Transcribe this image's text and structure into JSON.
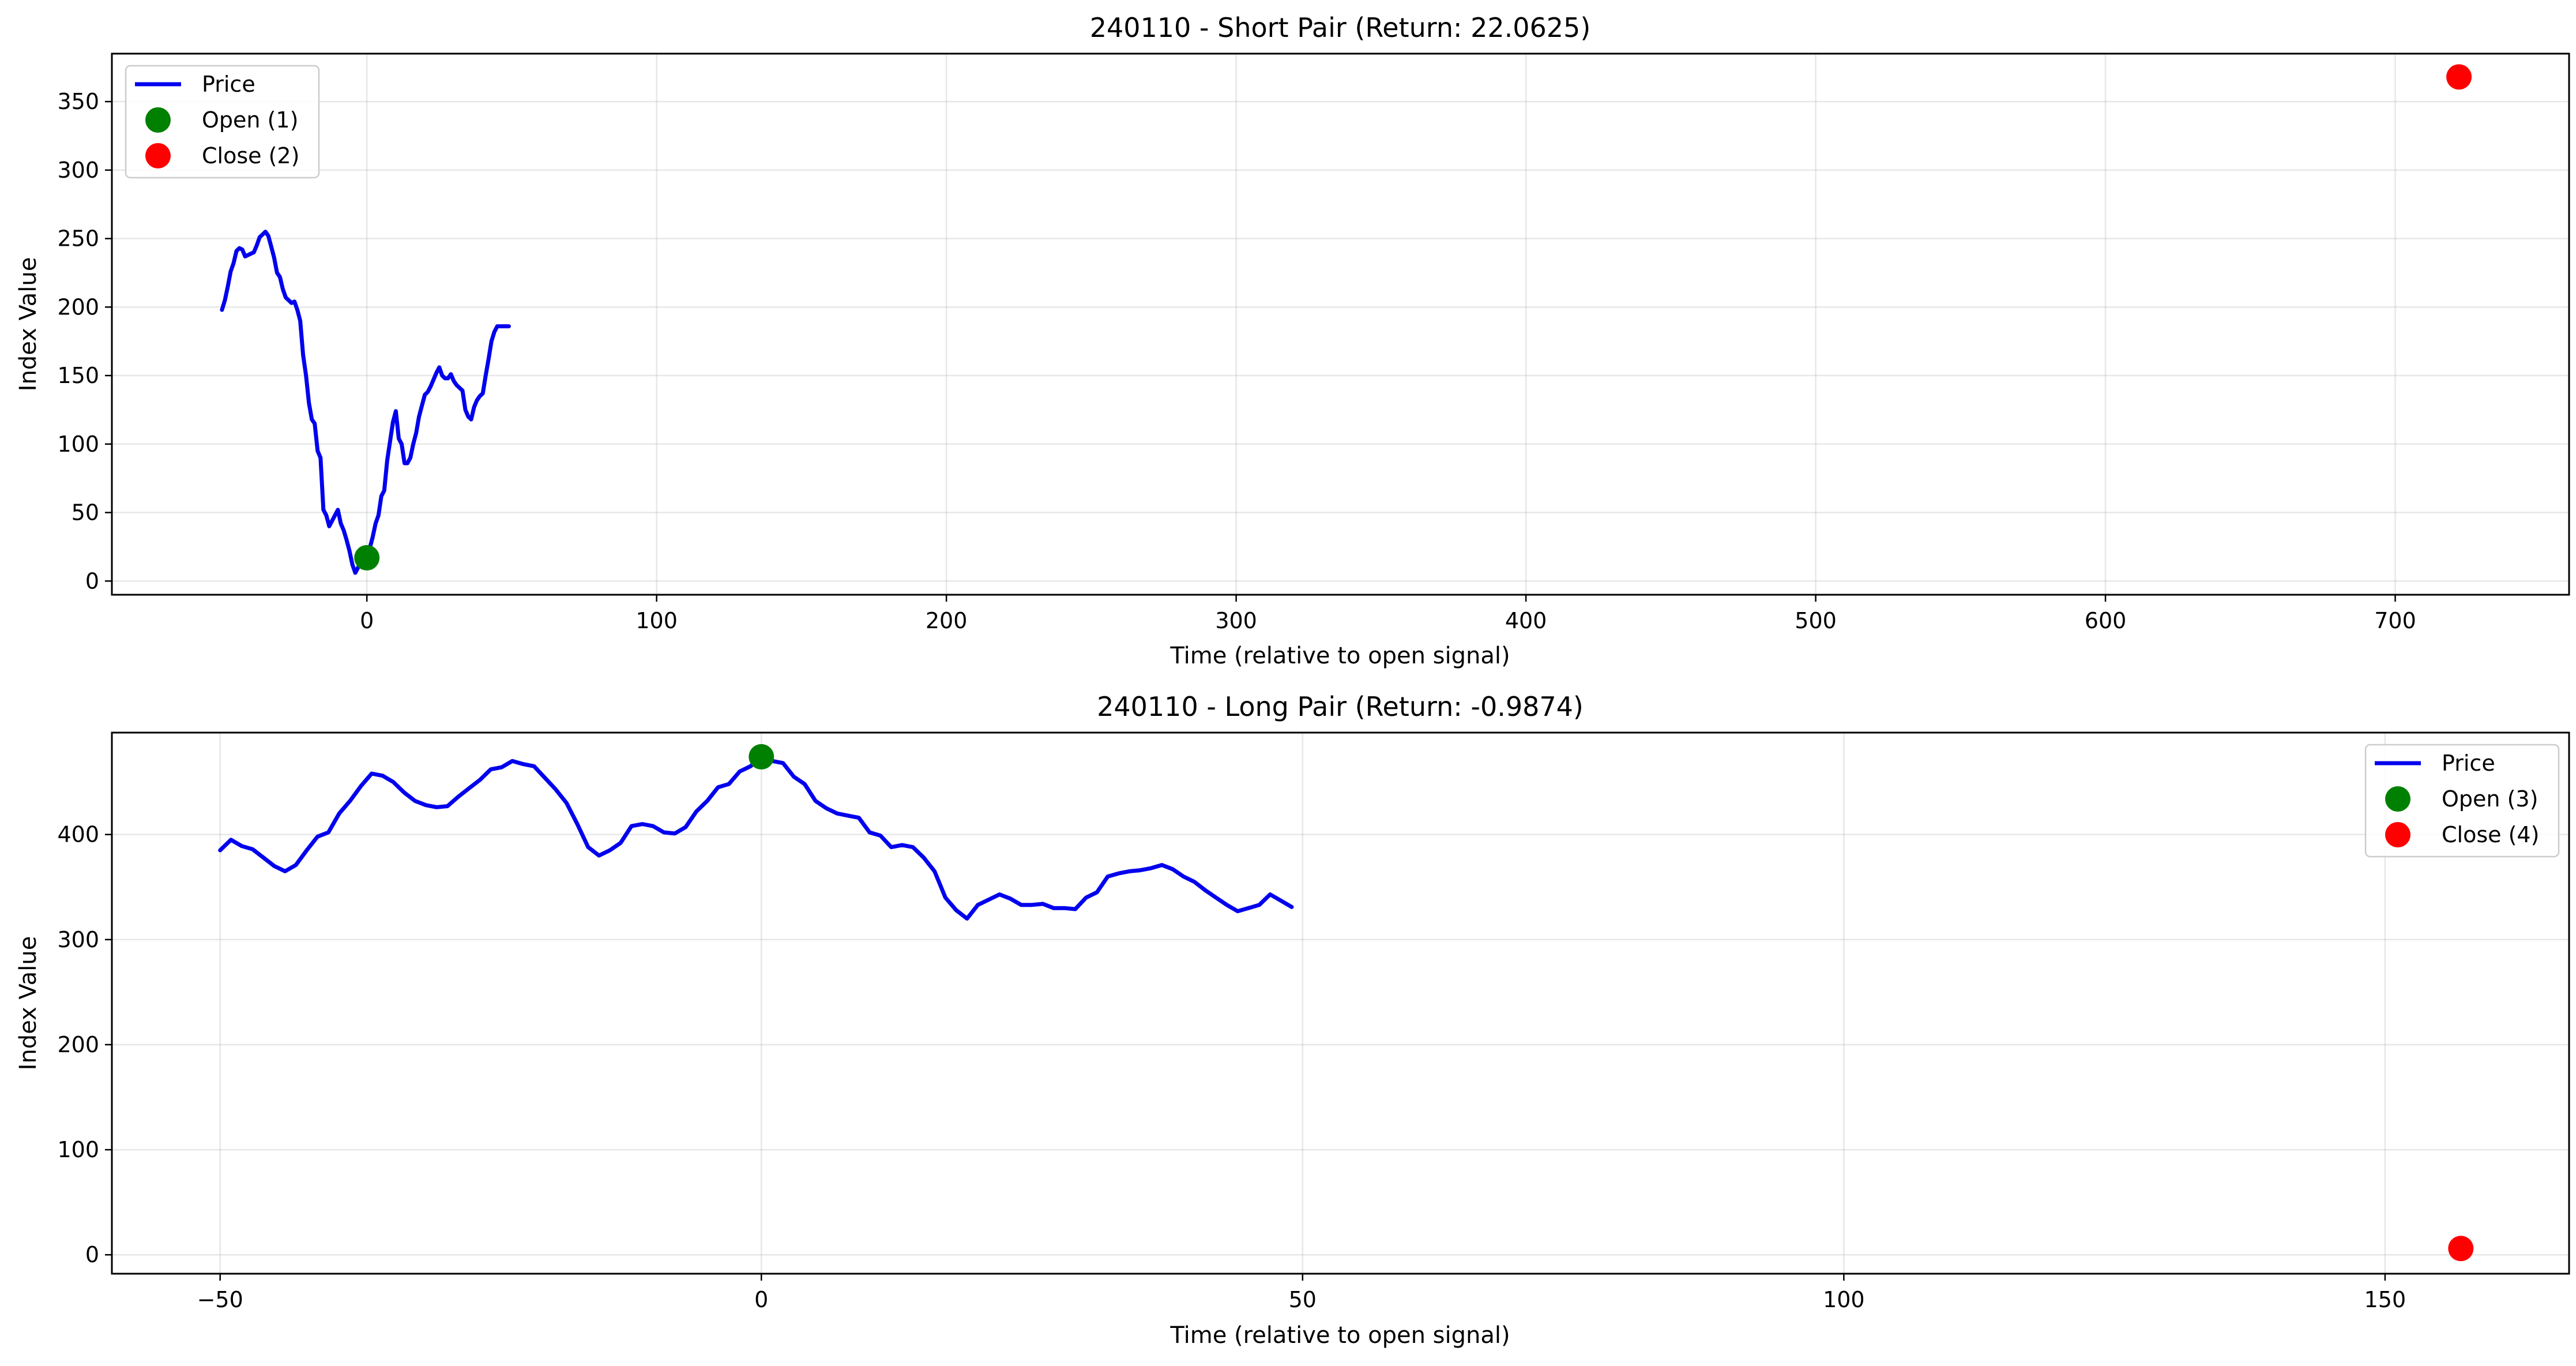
{
  "chart_data": [
    {
      "type": "line",
      "title": "240110 - Short Pair (Return: 22.0625)",
      "xlabel": "Time (relative to open signal)",
      "ylabel": "Index Value",
      "xlim": [
        -88,
        760
      ],
      "ylim": [
        -10,
        385
      ],
      "xticks": [
        0,
        100,
        200,
        300,
        400,
        500,
        600,
        700
      ],
      "yticks": [
        0,
        50,
        100,
        150,
        200,
        250,
        300,
        350
      ],
      "grid": true,
      "legend_position": "top-left",
      "series": [
        {
          "name": "Price",
          "color": "#0000ee",
          "x": [
            -50,
            -49,
            -48,
            -47,
            -46,
            -45,
            -44,
            -43,
            -42,
            -41,
            -40,
            -39,
            -38,
            -37,
            -36,
            -35,
            -34,
            -33,
            -32,
            -31,
            -30,
            -29,
            -28,
            -27,
            -26,
            -25,
            -24,
            -23,
            -22,
            -21,
            -20,
            -19,
            -18,
            -17,
            -16,
            -15,
            -14,
            -13,
            -12,
            -11,
            -10,
            -9,
            -8,
            -7,
            -6,
            -5,
            -4,
            -3,
            -2,
            -1,
            0,
            1,
            2,
            3,
            4,
            5,
            6,
            7,
            8,
            9,
            10,
            11,
            12,
            13,
            14,
            15,
            16,
            17,
            18,
            19,
            20,
            21,
            22,
            23,
            24,
            25,
            26,
            27,
            28,
            29,
            30,
            31,
            32,
            33,
            34,
            35,
            36,
            37,
            38,
            39,
            40,
            41,
            42,
            43,
            44,
            45,
            46,
            47,
            48,
            49
          ],
          "y": [
            198,
            205,
            215,
            226,
            232,
            241,
            243,
            242,
            237,
            238,
            239,
            240,
            245,
            251,
            253,
            255,
            252,
            244,
            236,
            225,
            222,
            213,
            207,
            205,
            203,
            204,
            198,
            190,
            165,
            150,
            130,
            118,
            115,
            95,
            90,
            52,
            48,
            40,
            44,
            48,
            52,
            42,
            37,
            30,
            22,
            12,
            6,
            10,
            14,
            22,
            17,
            24,
            32,
            42,
            48,
            62,
            66,
            88,
            102,
            116,
            124,
            104,
            100,
            86,
            86,
            90,
            100,
            108,
            120,
            128,
            136,
            138,
            142,
            147,
            152,
            156,
            150,
            148,
            148,
            151,
            146,
            143,
            141,
            139,
            125,
            120,
            118,
            127,
            132,
            135,
            137,
            150,
            162,
            175,
            182,
            186,
            186,
            186,
            186,
            186
          ]
        },
        {
          "name": "Open (1)",
          "color": "#008000",
          "points": [
            {
              "x": 0,
              "y": 17
            }
          ]
        },
        {
          "name": "Close (2)",
          "color": "#ff0000",
          "points": [
            {
              "x": 722,
              "y": 368
            }
          ]
        }
      ]
    },
    {
      "type": "line",
      "title": "240110 - Long Pair (Return: -0.9874)",
      "xlabel": "Time (relative to open signal)",
      "ylabel": "Index Value",
      "xlim": [
        -60,
        167
      ],
      "ylim": [
        -18,
        497
      ],
      "xticks": [
        -50,
        0,
        50,
        100,
        150
      ],
      "xtick_labels": [
        "−50",
        "0",
        "50",
        "100",
        "150"
      ],
      "yticks": [
        0,
        100,
        200,
        300,
        400
      ],
      "grid": true,
      "legend_position": "top-right",
      "series": [
        {
          "name": "Price",
          "color": "#0000ee",
          "x": [
            -50,
            -49,
            -48,
            -47,
            -46,
            -45,
            -44,
            -43,
            -42,
            -41,
            -40,
            -39,
            -38,
            -37,
            -36,
            -35,
            -34,
            -33,
            -32,
            -31,
            -30,
            -29,
            -28,
            -27,
            -26,
            -25,
            -24,
            -23,
            -22,
            -21,
            -20,
            -19,
            -18,
            -17,
            -16,
            -15,
            -14,
            -13,
            -12,
            -11,
            -10,
            -9,
            -8,
            -7,
            -6,
            -5,
            -4,
            -3,
            -2,
            -1,
            0,
            1,
            2,
            3,
            4,
            5,
            6,
            7,
            8,
            9,
            10,
            11,
            12,
            13,
            14,
            15,
            16,
            17,
            18,
            19,
            20,
            21,
            22,
            23,
            24,
            25,
            26,
            27,
            28,
            29,
            30,
            31,
            32,
            33,
            34,
            35,
            36,
            37,
            38,
            39,
            40,
            41,
            42,
            43,
            44,
            45,
            46,
            47,
            48,
            49
          ],
          "y": [
            385,
            395,
            389,
            386,
            378,
            370,
            365,
            371,
            385,
            398,
            402,
            420,
            432,
            446,
            458,
            456,
            450,
            440,
            432,
            428,
            426,
            427,
            436,
            444,
            452,
            462,
            464,
            470,
            467,
            465,
            454,
            443,
            430,
            410,
            388,
            380,
            385,
            392,
            408,
            410,
            408,
            402,
            401,
            407,
            422,
            432,
            445,
            448,
            460,
            465,
            474,
            470,
            468,
            455,
            448,
            432,
            425,
            420,
            418,
            416,
            402,
            399,
            388,
            390,
            388,
            378,
            365,
            340,
            328,
            320,
            333,
            338,
            343,
            339,
            333,
            333,
            334,
            330,
            330,
            329,
            340,
            345,
            360,
            363,
            365,
            366,
            368,
            371,
            367,
            360,
            355,
            347,
            340,
            333,
            327,
            330,
            333,
            343,
            337,
            331
          ]
        },
        {
          "name": "Open (3)",
          "color": "#008000",
          "points": [
            {
              "x": 0,
              "y": 474
            }
          ]
        },
        {
          "name": "Close (4)",
          "color": "#ff0000",
          "points": [
            {
              "x": 157,
              "y": 6
            }
          ]
        }
      ]
    }
  ]
}
